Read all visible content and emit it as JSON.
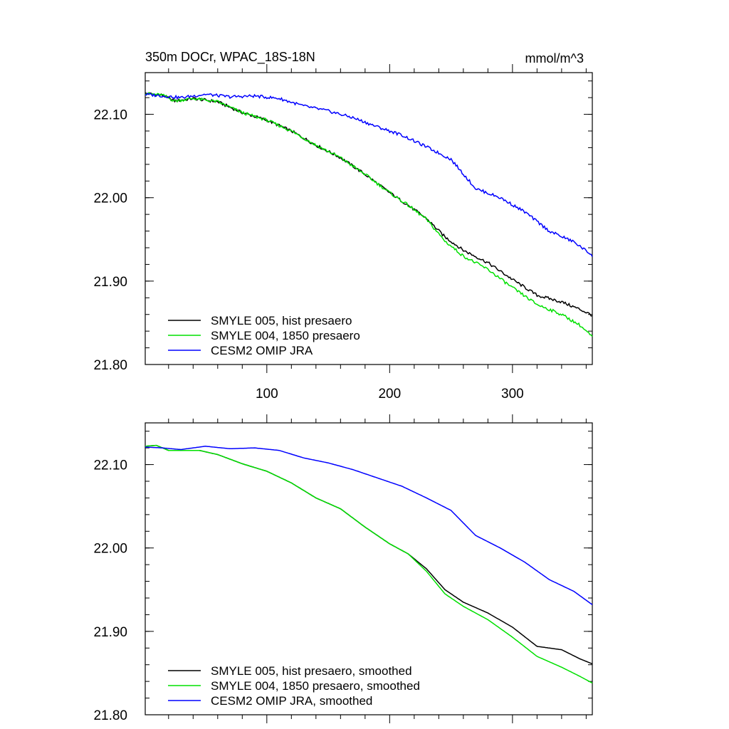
{
  "chart_data": [
    {
      "type": "line",
      "title": "350m DOCr, WPAC_18S-18N",
      "units": "mmol/m^3",
      "xlim": [
        1,
        365
      ],
      "ylim": [
        21.8,
        22.15
      ],
      "x_tick_labels": [
        "100",
        "200",
        "300"
      ],
      "y_tick_labels": [
        "21.80",
        "21.90",
        "22.00",
        "22.10"
      ],
      "legend_position": "bottom-left",
      "series": [
        {
          "name": "SMYLE 005, hist presaero",
          "color": "#000000",
          "x": [
            1,
            15,
            25,
            40,
            60,
            80,
            100,
            120,
            140,
            160,
            180,
            200,
            215,
            230,
            245,
            260,
            280,
            300,
            320,
            340,
            355,
            365
          ],
          "values": [
            22.125,
            22.123,
            22.116,
            22.119,
            22.115,
            22.102,
            22.093,
            22.08,
            22.063,
            22.048,
            22.028,
            22.006,
            21.991,
            21.975,
            21.953,
            21.937,
            21.922,
            21.902,
            21.883,
            21.875,
            21.866,
            21.859
          ]
        },
        {
          "name": "SMYLE 004, 1850 presaero",
          "color": "#00e000",
          "x": [
            1,
            15,
            25,
            40,
            60,
            80,
            100,
            120,
            140,
            160,
            180,
            200,
            215,
            230,
            245,
            260,
            280,
            300,
            320,
            340,
            355,
            365
          ],
          "values": [
            22.125,
            22.123,
            22.116,
            22.119,
            22.115,
            22.102,
            22.093,
            22.08,
            22.063,
            22.048,
            22.028,
            22.006,
            21.991,
            21.974,
            21.948,
            21.93,
            21.914,
            21.892,
            21.872,
            21.86,
            21.847,
            21.833
          ]
        },
        {
          "name": "CESM2 OMIP JRA",
          "color": "#0000ff",
          "x": [
            1,
            15,
            30,
            50,
            70,
            90,
            110,
            130,
            150,
            170,
            190,
            210,
            230,
            250,
            270,
            290,
            310,
            330,
            350,
            365
          ],
          "values": [
            22.124,
            22.122,
            22.12,
            22.124,
            22.121,
            22.122,
            22.119,
            22.11,
            22.104,
            22.096,
            22.085,
            22.075,
            22.061,
            22.046,
            22.011,
            22.0,
            21.983,
            21.96,
            21.947,
            21.931
          ]
        }
      ]
    },
    {
      "type": "line",
      "xlim": [
        1,
        365
      ],
      "ylim": [
        21.8,
        22.15
      ],
      "x_tick_labels": [],
      "y_tick_labels": [
        "21.80",
        "21.90",
        "22.00",
        "22.10"
      ],
      "legend_position": "bottom-left",
      "series": [
        {
          "name": "SMYLE 005, hist presaero, smoothed",
          "color": "#000000",
          "x": [
            1,
            10,
            20,
            30,
            45,
            60,
            80,
            100,
            120,
            140,
            160,
            180,
            200,
            215,
            230,
            245,
            260,
            280,
            300,
            320,
            340,
            355,
            365
          ],
          "values": [
            22.122,
            22.123,
            22.117,
            22.117,
            22.117,
            22.112,
            22.101,
            22.092,
            22.078,
            22.06,
            22.047,
            22.025,
            22.005,
            21.993,
            21.975,
            21.95,
            21.935,
            21.922,
            21.905,
            21.882,
            21.878,
            21.867,
            21.861
          ]
        },
        {
          "name": "SMYLE 004, 1850 presaero, smoothed",
          "color": "#00e000",
          "x": [
            1,
            10,
            20,
            30,
            45,
            60,
            80,
            100,
            120,
            140,
            160,
            180,
            200,
            215,
            230,
            245,
            260,
            280,
            300,
            320,
            340,
            355,
            365
          ],
          "values": [
            22.122,
            22.123,
            22.117,
            22.117,
            22.117,
            22.112,
            22.101,
            22.092,
            22.078,
            22.06,
            22.047,
            22.025,
            22.005,
            21.993,
            21.972,
            21.945,
            21.93,
            21.914,
            21.893,
            21.87,
            21.857,
            21.846,
            21.838
          ]
        },
        {
          "name": "CESM2 OMIP JRA, smoothed",
          "color": "#0000ff",
          "x": [
            1,
            15,
            30,
            50,
            70,
            90,
            110,
            130,
            150,
            170,
            190,
            210,
            230,
            250,
            270,
            290,
            310,
            330,
            350,
            365
          ],
          "values": [
            22.121,
            22.12,
            22.118,
            22.122,
            22.119,
            22.12,
            22.117,
            22.108,
            22.102,
            22.094,
            22.084,
            22.074,
            22.06,
            22.045,
            22.015,
            22.0,
            21.983,
            21.962,
            21.948,
            21.932
          ]
        }
      ]
    }
  ]
}
